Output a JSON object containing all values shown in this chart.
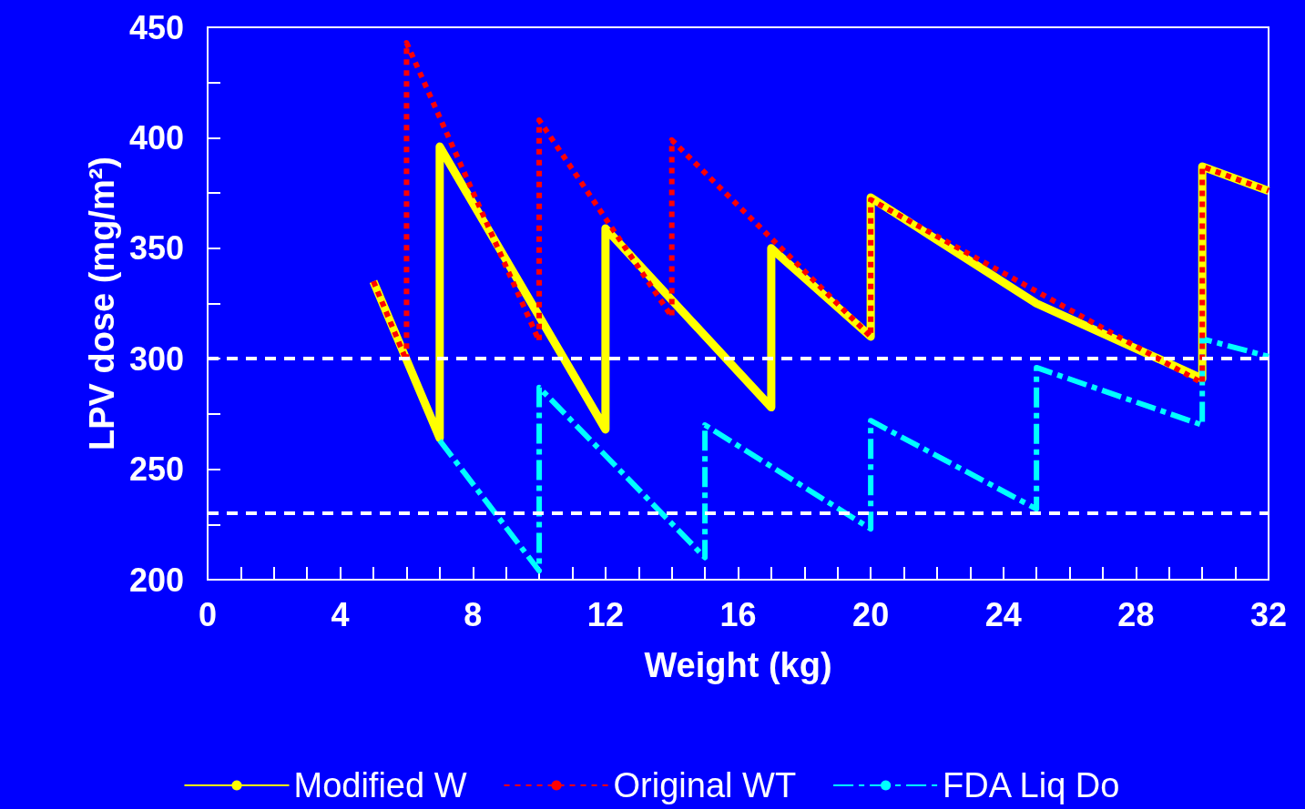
{
  "chart_data": {
    "type": "line",
    "xlabel": "Weight (kg)",
    "ylabel": "LPV dose (mg/m²)",
    "xlim": [
      0,
      32
    ],
    "ylim": [
      200,
      450
    ],
    "xticks": [
      0,
      {
        "value": 1,
        "label": null
      },
      {
        "value": 2,
        "label": null
      },
      {
        "value": 3,
        "label": null
      },
      4,
      {
        "value": 5,
        "label": null
      },
      {
        "value": 6,
        "label": null
      },
      {
        "value": 7,
        "label": null
      },
      8,
      {
        "value": 9,
        "label": null
      },
      {
        "value": 10,
        "label": null
      },
      {
        "value": 11,
        "label": null
      },
      12,
      {
        "value": 13,
        "label": null
      },
      {
        "value": 14,
        "label": null
      },
      {
        "value": 15,
        "label": null
      },
      16,
      {
        "value": 17,
        "label": null
      },
      {
        "value": 18,
        "label": null
      },
      {
        "value": 19,
        "label": null
      },
      20,
      {
        "value": 21,
        "label": null
      },
      {
        "value": 22,
        "label": null
      },
      {
        "value": 23,
        "label": null
      },
      24,
      {
        "value": 25,
        "label": null
      },
      {
        "value": 26,
        "label": null
      },
      {
        "value": 27,
        "label": null
      },
      28,
      {
        "value": 29,
        "label": null
      },
      {
        "value": 30,
        "label": null
      },
      {
        "value": 31,
        "label": null
      },
      32
    ],
    "yticks": [
      200,
      {
        "value": 225,
        "label": null
      },
      250,
      {
        "value": 275,
        "label": null
      },
      300,
      {
        "value": 325,
        "label": null
      },
      350,
      {
        "value": 375,
        "label": null
      },
      400,
      {
        "value": 425,
        "label": null
      },
      450
    ],
    "grid": false,
    "legend": "bottom",
    "marker": "none",
    "series": [
      {
        "name": "Modified W",
        "color": "#ffff00",
        "line_style": "solid",
        "x": [
          5,
          7,
          7,
          12,
          12,
          17,
          17,
          20,
          20,
          25,
          30,
          30,
          32
        ],
        "values": [
          335,
          264,
          396,
          268,
          359,
          278,
          350,
          310,
          373,
          325,
          291,
          387,
          376
        ]
      },
      {
        "name": "Original WT",
        "color": "#ff0000",
        "line_style": "dotted",
        "x": [
          5,
          6,
          6,
          10,
          10,
          14,
          14,
          20,
          20,
          30,
          30,
          32
        ],
        "values": [
          335,
          299,
          443,
          308,
          408,
          319,
          399,
          310,
          372,
          289,
          387,
          376
        ]
      },
      {
        "name": "FDA Liq Do",
        "color": "#00ffff",
        "line_style": "dashed",
        "x": [
          7,
          10,
          10,
          15,
          15,
          20,
          20,
          25,
          25,
          30,
          30,
          32
        ],
        "values": [
          263,
          204,
          287,
          210,
          270,
          223,
          272,
          232,
          296,
          270,
          309,
          301
        ]
      }
    ],
    "ref_lines": [
      {
        "axis": "y",
        "value": 300,
        "label": null,
        "color": "#ffffff",
        "line_style": "dashed"
      },
      {
        "axis": "y",
        "value": 230,
        "label": null,
        "color": "#ffffff",
        "line_style": "dashed"
      }
    ]
  }
}
